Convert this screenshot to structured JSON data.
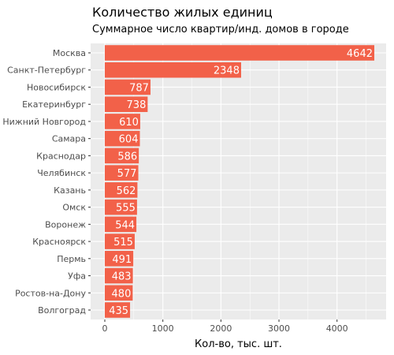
{
  "chart_data": {
    "type": "bar",
    "orientation": "horizontal",
    "title": "Количество жилых единиц",
    "subtitle": "Суммарное число квартир/инд. домов в городе",
    "xlabel": "Кол-во, тыс. шт.",
    "ylabel": "",
    "xlim": [
      0,
      4800
    ],
    "xticks": [
      0,
      1000,
      2000,
      3000,
      4000
    ],
    "grid": true,
    "bar_color": "#F26149",
    "panel_color": "#EBEBEB",
    "categories": [
      "Москва",
      "Санкт-Петербург",
      "Новосибирск",
      "Екатеринбург",
      "Нижний Новгород",
      "Самара",
      "Краснодар",
      "Челябинск",
      "Казань",
      "Омск",
      "Воронеж",
      "Красноярск",
      "Пермь",
      "Уфа",
      "Ростов-на-Дону",
      "Волгоград"
    ],
    "values": [
      4642,
      2348,
      787,
      738,
      610,
      604,
      586,
      577,
      562,
      555,
      544,
      515,
      491,
      483,
      480,
      435
    ]
  }
}
